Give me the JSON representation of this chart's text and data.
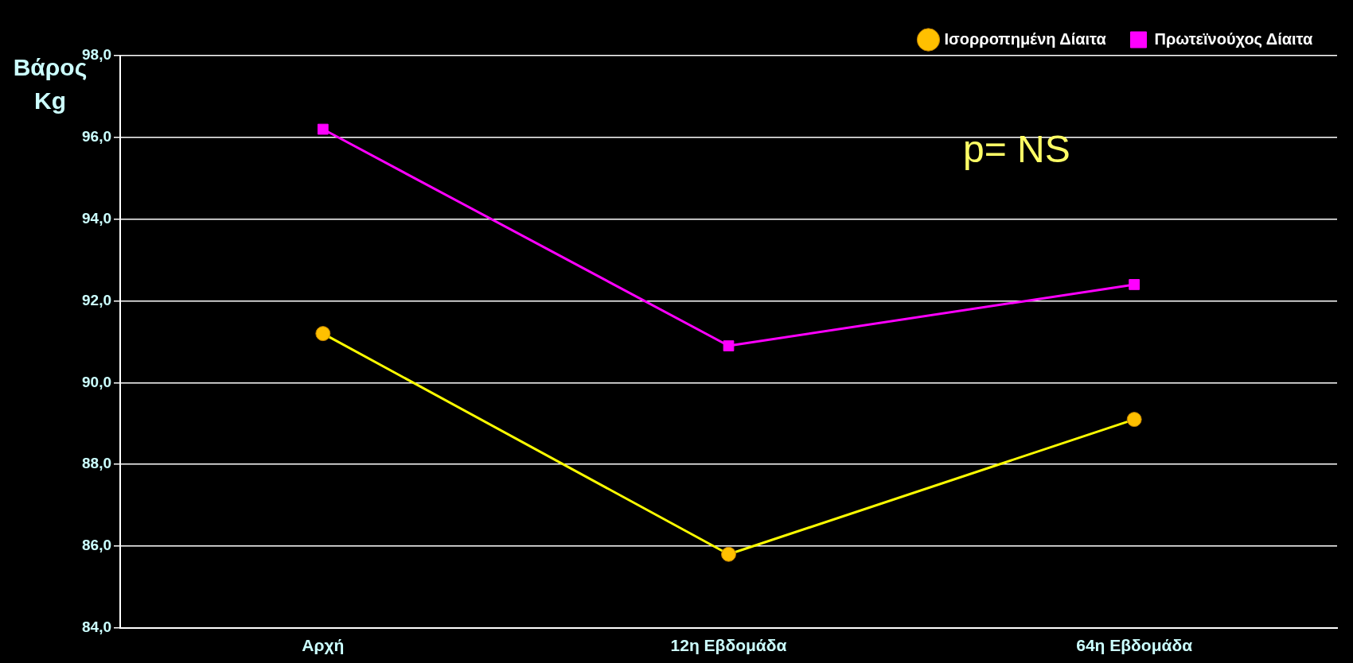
{
  "chart_data": {
    "type": "line",
    "ylabel": "Βάρος Kg",
    "categories": [
      "Αρχή",
      "12η Εβδομάδα",
      "64η Εβδομάδα"
    ],
    "series": [
      {
        "name": "Ισορροπημένη Δίαιτα",
        "color": "#ffff00",
        "marker": "circle",
        "values": [
          91.2,
          85.8,
          89.1
        ]
      },
      {
        "name": "Πρωτεϊνούχος Δίαιτα",
        "color": "#ff00ff",
        "marker": "square",
        "values": [
          96.2,
          90.9,
          92.4
        ]
      }
    ],
    "ylim": [
      84,
      98
    ],
    "yticks": [
      {
        "value": 84,
        "label": "84,0"
      },
      {
        "value": 86,
        "label": "86,0"
      },
      {
        "value": 88,
        "label": "88,0"
      },
      {
        "value": 90,
        "label": "90,0"
      },
      {
        "value": 92,
        "label": "92,0"
      },
      {
        "value": 94,
        "label": "94,0"
      },
      {
        "value": 96,
        "label": "96,0"
      },
      {
        "value": 98,
        "label": "98,0"
      }
    ],
    "grid": "y",
    "legend": "top right",
    "line_style": "solid",
    "annotations": [
      "p= NS"
    ]
  }
}
